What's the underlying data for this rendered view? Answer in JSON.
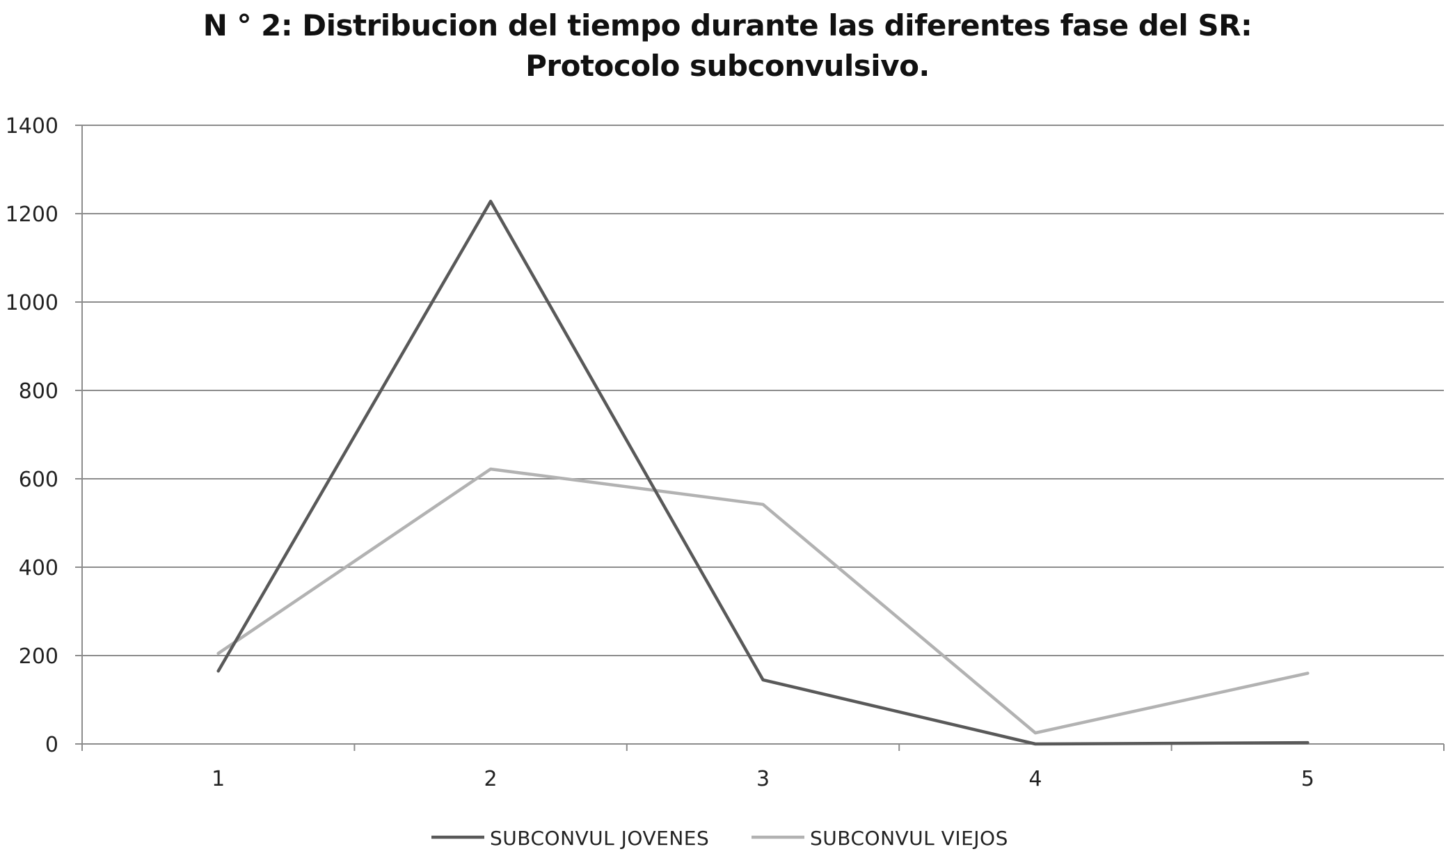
{
  "chart_data": {
    "type": "line",
    "title": "N ° 2: Distribucion del tiempo durante las diferentes fase del SR:",
    "subtitle": "Protocolo subconvulsivo.",
    "xlabel": "",
    "ylabel": "",
    "categories": [
      "1",
      "2",
      "3",
      "4",
      "5"
    ],
    "ylim": [
      0,
      1400
    ],
    "yticks": [
      0,
      200,
      400,
      600,
      800,
      1000,
      1200,
      1400
    ],
    "grid": "horizontal",
    "legend_position": "bottom",
    "series": [
      {
        "name": "SUBCONVUL JOVENES",
        "color": "#595959",
        "values": [
          165,
          1228,
          145,
          0,
          3
        ]
      },
      {
        "name": "SUBCONVUL VIEJOS",
        "color": "#b2b2b2",
        "values": [
          205,
          622,
          542,
          25,
          160
        ]
      }
    ]
  }
}
